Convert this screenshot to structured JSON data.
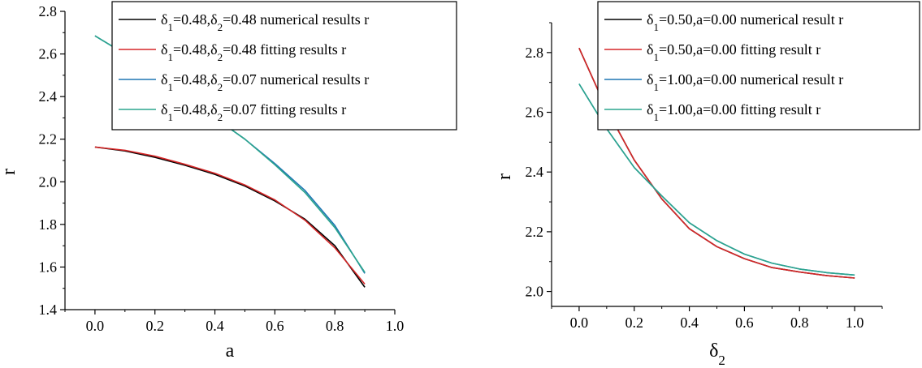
{
  "chart_data": [
    {
      "type": "line",
      "xlabel": "a",
      "ylabel": "r",
      "xlim": [
        -0.1,
        1.0
      ],
      "ylim": [
        1.4,
        2.8
      ],
      "xticks": [
        "0.0",
        "0.2",
        "0.4",
        "0.6",
        "0.8",
        "1.0"
      ],
      "yticks": [
        "1.4",
        "1.6",
        "1.8",
        "2.0",
        "2.2",
        "2.4",
        "2.6",
        "2.8"
      ],
      "legend_position": "top-right",
      "x": [
        0.0,
        0.1,
        0.2,
        0.3,
        0.4,
        0.5,
        0.6,
        0.7,
        0.8,
        0.9
      ],
      "series": [
        {
          "name_parts": [
            "δ",
            "1",
            "=0.48,δ",
            "2",
            "=0.48 numerical results r"
          ],
          "color": "#000000",
          "values": [
            2.163,
            2.145,
            2.115,
            2.078,
            2.035,
            1.98,
            1.91,
            1.825,
            1.7,
            1.505
          ]
        },
        {
          "name_parts": [
            "δ",
            "1",
            "=0.48,δ",
            "2",
            "=0.48 fitting results r"
          ],
          "color": "#d62728",
          "values": [
            2.163,
            2.148,
            2.12,
            2.082,
            2.04,
            1.985,
            1.915,
            1.82,
            1.69,
            1.52
          ]
        },
        {
          "name_parts": [
            "δ",
            "1",
            "=0.48,δ",
            "2",
            "=0.07 numerical results r"
          ],
          "color": "#1f77b4",
          "values": [
            2.685,
            2.6,
            2.51,
            2.41,
            2.3,
            2.2,
            2.085,
            1.96,
            1.795,
            1.57
          ]
        },
        {
          "name_parts": [
            "δ",
            "1",
            "=0.48,δ",
            "2",
            "=0.07 fitting results r"
          ],
          "color": "#2ca58d",
          "values": [
            2.685,
            2.6,
            2.51,
            2.41,
            2.3,
            2.2,
            2.08,
            1.95,
            1.785,
            1.575
          ]
        }
      ]
    },
    {
      "type": "line",
      "xlabel_parts": [
        "δ",
        "2"
      ],
      "ylabel": "r",
      "xlim": [
        -0.1,
        1.1
      ],
      "ylim": [
        1.95,
        2.9
      ],
      "xticks": [
        "0.0",
        "0.2",
        "0.4",
        "0.6",
        "0.8",
        "1.0"
      ],
      "yticks": [
        "2.0",
        "2.2",
        "2.4",
        "2.6",
        "2.8"
      ],
      "legend_position": "top-right",
      "x": [
        0.0,
        0.1,
        0.2,
        0.3,
        0.4,
        0.5,
        0.6,
        0.7,
        0.8,
        0.9,
        1.0
      ],
      "series": [
        {
          "name_parts": [
            "δ",
            "1",
            "=0.50,a=0.00 numerical result r",
            "",
            ""
          ],
          "color": "#000000",
          "values": [
            2.815,
            2.61,
            2.44,
            2.31,
            2.21,
            2.15,
            2.11,
            2.08,
            2.065,
            2.053,
            2.045
          ]
        },
        {
          "name_parts": [
            "δ",
            "1",
            "=0.50,a=0.00 fitting result r",
            "",
            ""
          ],
          "color": "#d62728",
          "values": [
            2.815,
            2.61,
            2.44,
            2.31,
            2.21,
            2.15,
            2.11,
            2.08,
            2.065,
            2.053,
            2.045
          ]
        },
        {
          "name_parts": [
            "δ",
            "1",
            "=1.00,a=0.00 numerical result r",
            "",
            ""
          ],
          "color": "#1f77b4",
          "values": [
            2.695,
            2.545,
            2.415,
            2.32,
            2.23,
            2.17,
            2.125,
            2.095,
            2.075,
            2.063,
            2.055
          ]
        },
        {
          "name_parts": [
            "δ",
            "1",
            "=1.00,a=0.00 fitting result r",
            "",
            ""
          ],
          "color": "#2ca58d",
          "values": [
            2.695,
            2.545,
            2.415,
            2.32,
            2.23,
            2.17,
            2.125,
            2.095,
            2.075,
            2.063,
            2.055
          ]
        }
      ]
    }
  ]
}
